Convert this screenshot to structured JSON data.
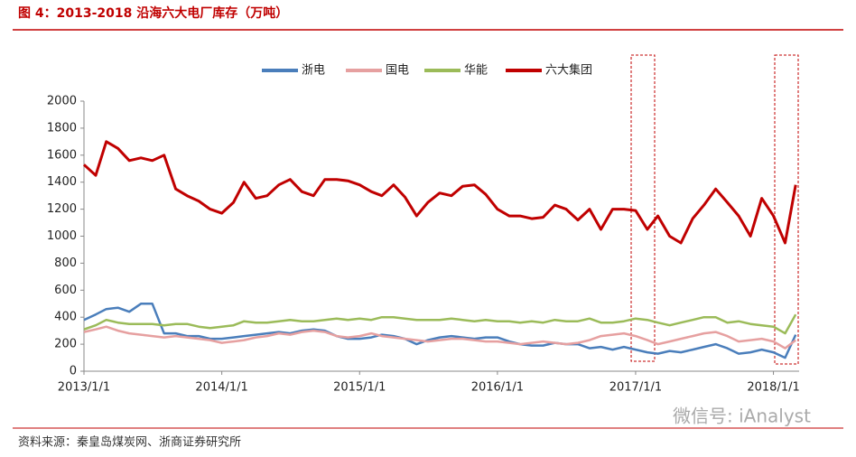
{
  "chart_data": {
    "type": "line",
    "title": "图 4：2013-2018 沿海六大电厂库存（万吨）",
    "source": "资料来源：秦皇岛煤炭网、浙商证券研究所",
    "watermark": "微信号: iAnalyst",
    "x": [
      "2013/1/1",
      "2013/2/1",
      "2013/3/1",
      "2013/4/1",
      "2013/5/1",
      "2013/6/1",
      "2013/7/1",
      "2013/8/1",
      "2013/9/1",
      "2013/10/1",
      "2013/11/1",
      "2013/12/1",
      "2014/1/1",
      "2014/2/1",
      "2014/3/1",
      "2014/4/1",
      "2014/5/1",
      "2014/6/1",
      "2014/7/1",
      "2014/8/1",
      "2014/9/1",
      "2014/10/1",
      "2014/11/1",
      "2014/12/1",
      "2015/1/1",
      "2015/2/1",
      "2015/3/1",
      "2015/4/1",
      "2015/5/1",
      "2015/6/1",
      "2015/7/1",
      "2015/8/1",
      "2015/9/1",
      "2015/10/1",
      "2015/11/1",
      "2015/12/1",
      "2016/1/1",
      "2016/2/1",
      "2016/3/1",
      "2016/4/1",
      "2016/5/1",
      "2016/6/1",
      "2016/7/1",
      "2016/8/1",
      "2016/9/1",
      "2016/10/1",
      "2016/11/1",
      "2016/12/1",
      "2017/1/1",
      "2017/2/1",
      "2017/3/1",
      "2017/4/1",
      "2017/5/1",
      "2017/6/1",
      "2017/7/1",
      "2017/8/1",
      "2017/9/1",
      "2017/10/1",
      "2017/11/1",
      "2017/12/1",
      "2018/1/1",
      "2018/2/1",
      "2018/3/1"
    ],
    "series": [
      {
        "name": "浙电",
        "color": "#4a7ebb",
        "values": [
          380,
          420,
          460,
          470,
          440,
          500,
          500,
          280,
          280,
          260,
          260,
          240,
          240,
          250,
          260,
          270,
          280,
          290,
          280,
          300,
          310,
          300,
          260,
          240,
          240,
          250,
          270,
          260,
          240,
          200,
          230,
          250,
          260,
          250,
          240,
          250,
          250,
          220,
          200,
          190,
          190,
          210,
          200,
          200,
          170,
          180,
          160,
          180,
          160,
          140,
          130,
          150,
          140,
          160,
          180,
          200,
          170,
          130,
          140,
          160,
          140,
          100,
          270
        ]
      },
      {
        "name": "国电",
        "color": "#e6a0a0",
        "values": [
          290,
          310,
          330,
          300,
          280,
          270,
          260,
          250,
          260,
          250,
          240,
          230,
          210,
          220,
          230,
          250,
          260,
          280,
          270,
          290,
          300,
          290,
          260,
          250,
          260,
          280,
          260,
          250,
          240,
          230,
          220,
          230,
          240,
          240,
          230,
          220,
          220,
          210,
          200,
          210,
          220,
          210,
          200,
          210,
          230,
          260,
          270,
          280,
          260,
          230,
          200,
          220,
          240,
          260,
          280,
          290,
          260,
          220,
          230,
          240,
          220,
          170,
          230
        ]
      },
      {
        "name": "华能",
        "color": "#9bbb59",
        "values": [
          310,
          340,
          380,
          360,
          350,
          350,
          350,
          340,
          350,
          350,
          330,
          320,
          330,
          340,
          370,
          360,
          360,
          370,
          380,
          370,
          370,
          380,
          390,
          380,
          390,
          380,
          400,
          400,
          390,
          380,
          380,
          380,
          390,
          380,
          370,
          380,
          370,
          370,
          360,
          370,
          360,
          380,
          370,
          370,
          390,
          360,
          360,
          370,
          390,
          380,
          360,
          340,
          360,
          380,
          400,
          400,
          360,
          370,
          350,
          340,
          330,
          280,
          420
        ]
      },
      {
        "name": "六大集团",
        "color": "#c00000",
        "values": [
          1530,
          1450,
          1700,
          1650,
          1560,
          1580,
          1560,
          1600,
          1350,
          1300,
          1260,
          1200,
          1170,
          1250,
          1400,
          1280,
          1300,
          1380,
          1420,
          1330,
          1300,
          1420,
          1420,
          1410,
          1380,
          1330,
          1300,
          1380,
          1290,
          1150,
          1250,
          1320,
          1300,
          1370,
          1380,
          1310,
          1200,
          1150,
          1150,
          1130,
          1140,
          1230,
          1200,
          1120,
          1200,
          1050,
          1200,
          1200,
          1190,
          1050,
          1150,
          1000,
          950,
          1130,
          1230,
          1350,
          1250,
          1150,
          1000,
          1280,
          1150,
          950,
          1380
        ]
      }
    ],
    "xlim": [
      "2013/1/1",
      "2018/3/10"
    ],
    "xticks": [
      "2013/1/1",
      "2014/1/1",
      "2015/1/1",
      "2016/1/1",
      "2017/1/1",
      "2018/1/1"
    ],
    "ylim": [
      0,
      2000
    ],
    "yticks": [
      0,
      200,
      400,
      600,
      800,
      1000,
      1200,
      1400,
      1600,
      1800,
      2000
    ],
    "legend": "top"
  }
}
